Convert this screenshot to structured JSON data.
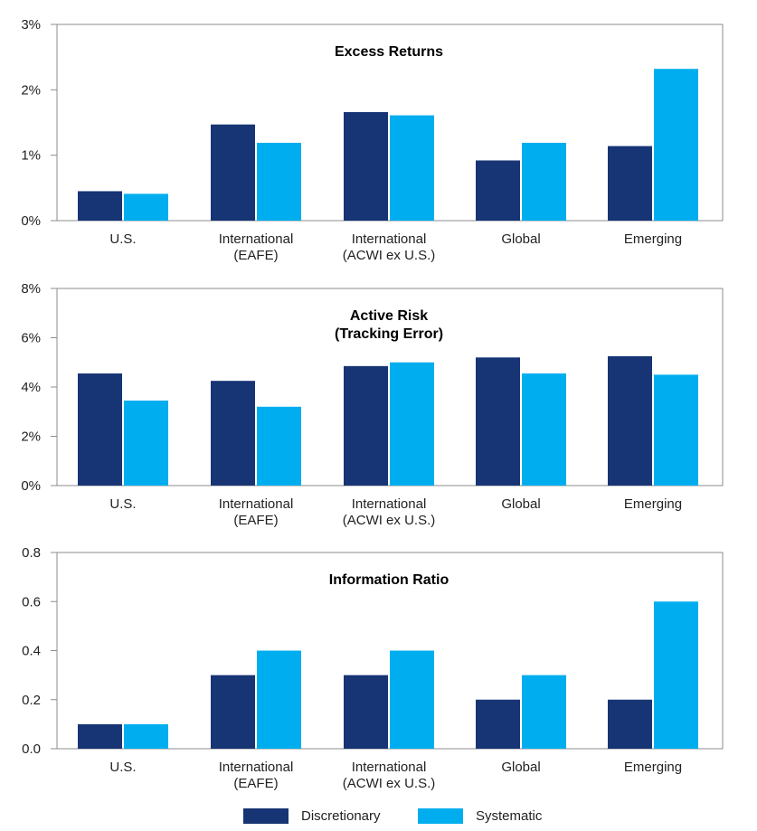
{
  "colors": {
    "discretionary": "#173474",
    "systematic": "#00aeef",
    "frame": "#8c8c8c",
    "grid": "#cfcfcf"
  },
  "legend": {
    "discretionary_label": "Discretionary",
    "systematic_label": "Systematic"
  },
  "chart_data": [
    {
      "type": "bar",
      "title_lines": [
        "Excess Returns"
      ],
      "categories": [
        [
          "U.S."
        ],
        [
          "International",
          "(EAFE)"
        ],
        [
          "International",
          "(ACWI ex U.S.)"
        ],
        [
          "Global"
        ],
        [
          "Emerging"
        ]
      ],
      "series": [
        {
          "name": "Discretionary",
          "values": [
            0.45,
            1.47,
            1.66,
            0.92,
            1.14
          ]
        },
        {
          "name": "Systematic",
          "values": [
            0.41,
            1.19,
            1.61,
            1.19,
            2.32
          ]
        }
      ],
      "ylim": [
        0,
        3
      ],
      "yticks": [
        0,
        1,
        2,
        3
      ],
      "ytick_labels": [
        "0%",
        "1%",
        "2%",
        "3%"
      ]
    },
    {
      "type": "bar",
      "title_lines": [
        "Active Risk",
        "(Tracking Error)"
      ],
      "categories": [
        [
          "U.S."
        ],
        [
          "International",
          "(EAFE)"
        ],
        [
          "International",
          "(ACWI ex U.S.)"
        ],
        [
          "Global"
        ],
        [
          "Emerging"
        ]
      ],
      "series": [
        {
          "name": "Discretionary",
          "values": [
            4.55,
            4.25,
            4.85,
            5.2,
            5.25
          ]
        },
        {
          "name": "Systematic",
          "values": [
            3.45,
            3.2,
            5.0,
            4.55,
            4.5
          ]
        }
      ],
      "ylim": [
        0,
        8
      ],
      "yticks": [
        0,
        2,
        4,
        6,
        8
      ],
      "ytick_labels": [
        "0%",
        "2%",
        "4%",
        "6%",
        "8%"
      ]
    },
    {
      "type": "bar",
      "title_lines": [
        "Information Ratio"
      ],
      "categories": [
        [
          "U.S."
        ],
        [
          "International",
          "(EAFE)"
        ],
        [
          "International",
          "(ACWI ex U.S.)"
        ],
        [
          "Global"
        ],
        [
          "Emerging"
        ]
      ],
      "series": [
        {
          "name": "Discretionary",
          "values": [
            0.1,
            0.3,
            0.3,
            0.2,
            0.2
          ]
        },
        {
          "name": "Systematic",
          "values": [
            0.1,
            0.4,
            0.4,
            0.3,
            0.6
          ]
        }
      ],
      "ylim": [
        0,
        0.8
      ],
      "yticks": [
        0,
        0.2,
        0.4,
        0.6,
        0.8
      ],
      "ytick_labels": [
        "0.0",
        "0.2",
        "0.4",
        "0.6",
        "0.8"
      ]
    }
  ]
}
